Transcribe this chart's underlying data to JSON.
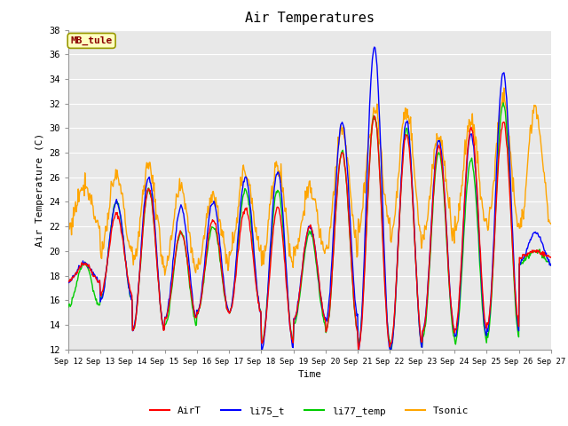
{
  "title": "Air Temperatures",
  "xlabel": "Time",
  "ylabel": "Air Temperature (C)",
  "ylim": [
    12,
    38
  ],
  "yticks": [
    12,
    14,
    16,
    18,
    20,
    22,
    24,
    26,
    28,
    30,
    32,
    34,
    36,
    38
  ],
  "xtick_labels": [
    "Sep 12",
    "Sep 13",
    "Sep 14",
    "Sep 15",
    "Sep 16",
    "Sep 17",
    "Sep 18",
    "Sep 19",
    "Sep 20",
    "Sep 21",
    "Sep 22",
    "Sep 23",
    "Sep 24",
    "Sep 25",
    "Sep 26",
    "Sep 27"
  ],
  "site_label": "MB_tule",
  "site_label_color": "#8B0000",
  "site_label_bg": "#FFFFC0",
  "site_label_border": "#999900",
  "colors": {
    "AirT": "#FF0000",
    "li75_t": "#0000FF",
    "li77_temp": "#00CC00",
    "Tsonic": "#FFA500"
  },
  "line_width": 1.0,
  "bg_color": "#E8E8E8",
  "grid_color": "#FFFFFF",
  "n_days": 15,
  "points_per_day": 48,
  "base_night_airt": [
    17.5,
    16.5,
    13.5,
    14.5,
    15.0,
    15.0,
    12.5,
    14.5,
    13.5,
    12.0,
    12.5,
    13.5,
    13.5,
    14.0,
    19.5
  ],
  "base_day_airt": [
    19.0,
    23.0,
    25.0,
    21.5,
    22.5,
    23.5,
    23.5,
    22.0,
    28.0,
    31.0,
    29.5,
    28.5,
    30.0,
    30.5,
    20.0
  ],
  "base_night_li75": [
    17.5,
    16.0,
    13.5,
    14.5,
    15.0,
    15.0,
    12.0,
    14.5,
    14.5,
    12.0,
    12.0,
    13.5,
    13.0,
    13.5,
    19.0
  ],
  "base_day_li75": [
    19.0,
    24.0,
    26.0,
    23.5,
    24.0,
    26.0,
    26.5,
    22.0,
    30.5,
    36.5,
    30.5,
    29.0,
    29.5,
    34.5,
    21.5
  ],
  "base_night_li77": [
    15.5,
    16.0,
    13.5,
    14.0,
    15.0,
    15.0,
    12.5,
    14.0,
    13.5,
    12.5,
    12.0,
    13.0,
    12.5,
    13.0,
    19.0
  ],
  "base_day_li77": [
    19.0,
    24.0,
    25.0,
    21.5,
    22.0,
    25.0,
    25.0,
    21.5,
    28.0,
    31.0,
    30.0,
    28.0,
    27.5,
    32.0,
    20.0
  ],
  "base_night_ts": [
    22.0,
    20.0,
    19.0,
    18.5,
    19.0,
    20.0,
    19.0,
    20.0,
    20.0,
    22.0,
    21.0,
    21.0,
    22.0,
    22.0,
    22.0
  ],
  "base_day_ts": [
    25.5,
    26.0,
    27.0,
    25.0,
    24.5,
    26.5,
    27.0,
    25.0,
    30.0,
    31.5,
    31.5,
    29.5,
    30.5,
    32.5,
    31.5
  ]
}
